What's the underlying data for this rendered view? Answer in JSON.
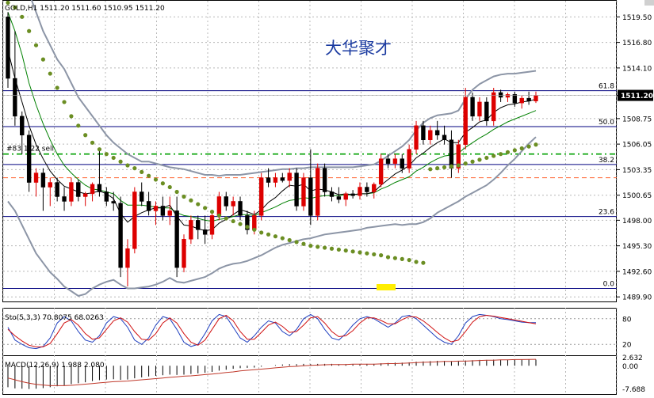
{
  "header": {
    "symbol_line": "GOLD,H1  1511.20  1511.60  1510.95  1511.20",
    "watermark": "大华聚才",
    "trade_label": "#83 1.22 sell"
  },
  "colors": {
    "up": "#dd0000",
    "down": "#000000",
    "bollinger": "#8c95a6",
    "ma_fast": "#000000",
    "ma_slow": "#008000",
    "sar": "#6b8e23",
    "fib": "#00007f",
    "trade_line": "#00a000",
    "stop_line": "#ff6633",
    "stoch_main": "#1f3fbf",
    "stoch_signal": "#d01010",
    "macd_bar": "#000000",
    "macd_signal": "#c0392b",
    "highlight": "#ffee00"
  },
  "chart_data": [
    {
      "type": "candlestick",
      "title": "GOLD,H1",
      "ohlc_readout": "1511.20 1511.60 1510.95 1511.20",
      "ylim": [
        1489.5,
        1521.2
      ],
      "yticks": [
        "1519.50",
        "1516.80",
        "1514.10",
        "1511.20",
        "1508.75",
        "1506.05",
        "1503.35",
        "1500.65",
        "1498.00",
        "1495.30",
        "1492.60",
        "1489.90"
      ],
      "current_price": "1511.20",
      "candles": [
        [
          1519.5,
          1520.0,
          1512.0,
          1513.0
        ],
        [
          1513.0,
          1518.0,
          1508.0,
          1509.0
        ],
        [
          1509.0,
          1509.5,
          1505.0,
          1507.0
        ],
        [
          1507.0,
          1507.5,
          1501.0,
          1502.0
        ],
        [
          1502.0,
          1503.5,
          1500.5,
          1503.0
        ],
        [
          1503.0,
          1503.5,
          1499.0,
          1501.5
        ],
        [
          1501.5,
          1502.5,
          1499.5,
          1502.0
        ],
        [
          1502.0,
          1502.5,
          1500.0,
          1500.5
        ],
        [
          1500.5,
          1501.5,
          1499.0,
          1500.0
        ],
        [
          1500.0,
          1502.5,
          1499.5,
          1502.0
        ],
        [
          1502.0,
          1502.3,
          1500.0,
          1500.5
        ],
        [
          1500.5,
          1501.0,
          1499.5,
          1500.8
        ],
        [
          1500.8,
          1502.0,
          1500.0,
          1501.8
        ],
        [
          1501.8,
          1505.5,
          1500.5,
          1501.0
        ],
        [
          1501.0,
          1501.5,
          1499.5,
          1500.0
        ],
        [
          1500.0,
          1501.0,
          1499.0,
          1499.8
        ],
        [
          1499.8,
          1500.5,
          1492.0,
          1493.0
        ],
        [
          1493.0,
          1496.0,
          1491.0,
          1495.0
        ],
        [
          1495.0,
          1501.5,
          1494.5,
          1501.0
        ],
        [
          1501.0,
          1502.0,
          1499.5,
          1500.0
        ],
        [
          1500.0,
          1501.0,
          1498.5,
          1499.0
        ],
        [
          1499.0,
          1500.0,
          1497.5,
          1499.5
        ],
        [
          1499.5,
          1500.5,
          1498.0,
          1498.5
        ],
        [
          1498.5,
          1500.5,
          1497.5,
          1499.0
        ],
        [
          1499.0,
          1500.5,
          1492.0,
          1493.0
        ],
        [
          1493.0,
          1496.5,
          1492.5,
          1496.0
        ],
        [
          1496.0,
          1498.5,
          1495.5,
          1498.0
        ],
        [
          1498.0,
          1498.5,
          1496.0,
          1497.0
        ],
        [
          1497.0,
          1498.5,
          1495.5,
          1496.5
        ],
        [
          1496.5,
          1499.0,
          1496.0,
          1498.5
        ],
        [
          1498.5,
          1501.0,
          1498.0,
          1500.5
        ],
        [
          1500.5,
          1501.0,
          1499.0,
          1499.5
        ],
        [
          1499.5,
          1500.5,
          1498.5,
          1500.0
        ],
        [
          1500.0,
          1500.5,
          1498.0,
          1498.5
        ],
        [
          1498.5,
          1499.0,
          1496.5,
          1497.0
        ],
        [
          1497.0,
          1499.0,
          1496.5,
          1498.5
        ],
        [
          1498.5,
          1503.0,
          1498.0,
          1502.5
        ],
        [
          1502.5,
          1503.5,
          1501.5,
          1502.0
        ],
        [
          1502.0,
          1503.0,
          1501.5,
          1502.5
        ],
        [
          1502.5,
          1503.0,
          1502.0,
          1502.2
        ],
        [
          1502.2,
          1503.5,
          1501.5,
          1503.0
        ],
        [
          1503.0,
          1503.5,
          1499.0,
          1499.5
        ],
        [
          1499.5,
          1503.0,
          1499.0,
          1502.5
        ],
        [
          1502.5,
          1505.5,
          1497.5,
          1498.5
        ],
        [
          1498.5,
          1504.0,
          1498.0,
          1503.5
        ],
        [
          1503.5,
          1504.0,
          1500.5,
          1501.0
        ],
        [
          1501.0,
          1501.5,
          1500.0,
          1500.5
        ],
        [
          1500.5,
          1501.5,
          1499.8,
          1500.2
        ],
        [
          1500.2,
          1501.0,
          1499.5,
          1500.8
        ],
        [
          1500.8,
          1501.2,
          1500.3,
          1500.6
        ],
        [
          1500.6,
          1502.0,
          1500.2,
          1501.5
        ],
        [
          1501.5,
          1502.0,
          1500.5,
          1501.0
        ],
        [
          1501.0,
          1502.0,
          1500.3,
          1501.8
        ],
        [
          1501.8,
          1505.0,
          1501.5,
          1504.5
        ],
        [
          1504.5,
          1505.0,
          1503.5,
          1504.0
        ],
        [
          1504.0,
          1505.0,
          1503.5,
          1504.5
        ],
        [
          1504.5,
          1505.0,
          1503.0,
          1503.5
        ],
        [
          1503.5,
          1506.0,
          1503.0,
          1505.5
        ],
        [
          1505.5,
          1508.5,
          1505.0,
          1508.0
        ],
        [
          1508.0,
          1508.5,
          1506.0,
          1506.5
        ],
        [
          1506.5,
          1508.0,
          1506.0,
          1507.5
        ],
        [
          1507.5,
          1508.5,
          1506.5,
          1507.0
        ],
        [
          1507.0,
          1508.0,
          1506.0,
          1506.5
        ],
        [
          1506.5,
          1507.5,
          1502.5,
          1503.5
        ],
        [
          1503.5,
          1506.5,
          1503.0,
          1506.0
        ],
        [
          1506.0,
          1512.0,
          1505.5,
          1511.0
        ],
        [
          1511.0,
          1511.5,
          1508.5,
          1509.0
        ],
        [
          1509.0,
          1511.0,
          1508.5,
          1510.5
        ],
        [
          1510.5,
          1511.0,
          1508.0,
          1508.5
        ],
        [
          1508.5,
          1512.0,
          1508.0,
          1511.5
        ],
        [
          1511.5,
          1511.8,
          1510.5,
          1511.0
        ],
        [
          1511.0,
          1511.5,
          1510.5,
          1511.3
        ],
        [
          1511.3,
          1511.6,
          1510.0,
          1510.4
        ],
        [
          1510.4,
          1511.2,
          1509.8,
          1510.9
        ],
        [
          1510.9,
          1511.6,
          1510.2,
          1510.6
        ],
        [
          1510.6,
          1511.6,
          1510.4,
          1511.2
        ]
      ],
      "bb_upper": [
        1526,
        1525,
        1523.5,
        1522,
        1520,
        1518,
        1516.5,
        1515,
        1514,
        1512.5,
        1511,
        1510,
        1509,
        1508,
        1507,
        1506.2,
        1505.6,
        1505,
        1504.6,
        1504.2,
        1504.2,
        1504,
        1503.8,
        1503.6,
        1503.5,
        1503.4,
        1503.2,
        1503,
        1502.8,
        1502.8,
        1502.7,
        1502.8,
        1502.8,
        1502.8,
        1502.9,
        1503,
        1503.1,
        1503.2,
        1503.3,
        1503.4,
        1503.4,
        1503.5,
        1503.5,
        1503.6,
        1503.6,
        1503.6,
        1503.6,
        1503.6,
        1503.6,
        1503.6,
        1503.7,
        1503.8,
        1503.9,
        1504.3,
        1504.8,
        1505.3,
        1505.8,
        1506.5,
        1507.5,
        1508.3,
        1508.8,
        1509.1,
        1509.2,
        1509.3,
        1509.6,
        1510.8,
        1511.8,
        1512.4,
        1512.8,
        1513.2,
        1513.4,
        1513.5,
        1513.5,
        1513.6,
        1513.7,
        1513.8
      ],
      "bb_lower": [
        1500,
        1499,
        1497.5,
        1496,
        1494.5,
        1493.5,
        1492.5,
        1491.8,
        1491,
        1490.5,
        1490,
        1490.2,
        1490.8,
        1491.2,
        1491.5,
        1491.7,
        1491.2,
        1490.8,
        1490.8,
        1490.9,
        1491,
        1491.2,
        1491.5,
        1491.9,
        1491.5,
        1491.4,
        1491.6,
        1491.8,
        1492,
        1492.4,
        1492.9,
        1493.2,
        1493.4,
        1493.5,
        1493.7,
        1494,
        1494.3,
        1494.7,
        1495.1,
        1495.4,
        1495.6,
        1495.8,
        1496,
        1496.1,
        1496.3,
        1496.5,
        1496.6,
        1496.7,
        1496.8,
        1496.9,
        1497,
        1497.2,
        1497.3,
        1497.4,
        1497.5,
        1497.6,
        1497.5,
        1497.6,
        1497.6,
        1497.8,
        1498.2,
        1498.8,
        1499.2,
        1499.6,
        1500,
        1500.5,
        1500.9,
        1501.3,
        1501.7,
        1502.3,
        1503,
        1503.8,
        1504.5,
        1505.3,
        1506.1,
        1506.8
      ],
      "ma_fast": [
        1516,
        1513,
        1510.5,
        1508,
        1506,
        1504.5,
        1503.2,
        1502.3,
        1501.6,
        1501.3,
        1501,
        1500.8,
        1500.9,
        1501.1,
        1500.8,
        1500.3,
        1498.7,
        1497.8,
        1498.4,
        1498.8,
        1499.1,
        1499.3,
        1499.3,
        1499.6,
        1498.4,
        1497.5,
        1497.4,
        1497.1,
        1496.9,
        1497,
        1497.7,
        1498.1,
        1498.6,
        1499.1,
        1498.9,
        1498.6,
        1499.1,
        1499.9,
        1500.4,
        1501.1,
        1501.7,
        1501.6,
        1501.8,
        1501.1,
        1501.3,
        1501.2,
        1501,
        1500.7,
        1500.8,
        1500.7,
        1500.8,
        1500.8,
        1501,
        1501.7,
        1502.3,
        1502.9,
        1503.3,
        1503.8,
        1504.6,
        1505.1,
        1505.7,
        1506.2,
        1506.6,
        1506.2,
        1506.2,
        1507.3,
        1507.8,
        1508.4,
        1508.6,
        1509.4,
        1509.9,
        1510.2,
        1510.3,
        1510.5,
        1510.6,
        1510.8
      ],
      "ma_slow": [
        1520,
        1518,
        1515.5,
        1512.5,
        1510.2,
        1508.2,
        1506.5,
        1505,
        1503.8,
        1503,
        1502.3,
        1501.7,
        1501.3,
        1501.2,
        1501,
        1500.8,
        1500.1,
        1499.6,
        1499.6,
        1499.6,
        1499.5,
        1499.4,
        1499.3,
        1499.3,
        1498.8,
        1498.5,
        1498.4,
        1498.2,
        1498,
        1497.9,
        1498.1,
        1498.2,
        1498.4,
        1498.6,
        1498.6,
        1498.5,
        1498.8,
        1499.1,
        1499.4,
        1499.8,
        1500.1,
        1500.2,
        1500.4,
        1500.3,
        1500.5,
        1500.6,
        1500.6,
        1500.6,
        1500.7,
        1500.7,
        1500.8,
        1500.8,
        1500.9,
        1501.3,
        1501.6,
        1502,
        1502.3,
        1502.6,
        1503.2,
        1503.6,
        1504.1,
        1504.5,
        1504.8,
        1504.9,
        1505.1,
        1505.7,
        1506.2,
        1506.7,
        1507.1,
        1507.6,
        1508,
        1508.4,
        1508.7,
        1509,
        1509.3,
        1509.6
      ],
      "sar": [
        1521,
        1520.5,
        1519.5,
        1518,
        1516.5,
        1515,
        1513.5,
        1512,
        1510.5,
        1509,
        1508,
        1507,
        1506.2,
        1505.5,
        1505,
        1504.6,
        1504.2,
        1503.8,
        1503.5,
        1503.1,
        1502.7,
        1502.3,
        1501.9,
        1501.5,
        1501,
        1500.5,
        1500.1,
        1499.7,
        1499.3,
        1498.9,
        1498.5,
        1498.2,
        1497.9,
        1497.6,
        1497.3,
        1497,
        1496.7,
        1496.5,
        1496.3,
        1496.1,
        1495.9,
        1495.7,
        1495.5,
        1495.3,
        1495.2,
        1495.1,
        1495,
        1494.9,
        1494.8,
        1494.7,
        1494.6,
        1494.5,
        1494.4,
        1494.3,
        1494.1,
        1494,
        1493.9,
        1493.8,
        1493.6,
        1493.5,
        1503.4,
        1503.5,
        1503.6,
        1503.7,
        1503.8,
        1504,
        1504.2,
        1504.4,
        1504.6,
        1504.8,
        1505,
        1505.2,
        1505.4,
        1505.6,
        1505.8,
        1506
      ],
      "fib_levels": [
        {
          "label": "61.8",
          "value": 1511.7
        },
        {
          "label": "50.0",
          "value": 1507.9
        },
        {
          "label": "38.2",
          "value": 1503.9
        },
        {
          "label": "23.6",
          "value": 1498.4
        },
        {
          "label": "0.0",
          "value": 1490.8
        }
      ],
      "trade_line": {
        "label": "#83 1.22 sell",
        "value": 1505.0
      },
      "stop_line": 1502.5
    },
    {
      "type": "line",
      "title": "Sto(5,3,3) 70.8075 68.0263",
      "ylim": [
        0,
        100
      ],
      "levels": [
        20,
        80
      ],
      "yticks": [
        "80",
        "20"
      ],
      "main": [
        60,
        30,
        20,
        12,
        10,
        15,
        35,
        70,
        85,
        75,
        50,
        30,
        25,
        40,
        70,
        85,
        80,
        60,
        30,
        20,
        35,
        65,
        85,
        80,
        55,
        25,
        15,
        20,
        45,
        75,
        90,
        85,
        60,
        35,
        25,
        40,
        60,
        75,
        70,
        50,
        40,
        55,
        80,
        90,
        80,
        55,
        35,
        30,
        45,
        65,
        80,
        85,
        80,
        70,
        60,
        70,
        85,
        88,
        80,
        65,
        50,
        35,
        25,
        20,
        40,
        70,
        85,
        90,
        88,
        85,
        80,
        78,
        75,
        72,
        70.8,
        70.8
      ],
      "signal": [
        55,
        40,
        28,
        18,
        14,
        14,
        22,
        45,
        70,
        78,
        65,
        45,
        32,
        35,
        55,
        75,
        82,
        72,
        50,
        32,
        30,
        45,
        70,
        82,
        70,
        45,
        25,
        18,
        30,
        55,
        80,
        88,
        75,
        50,
        32,
        32,
        48,
        65,
        72,
        62,
        48,
        50,
        65,
        82,
        85,
        70,
        50,
        38,
        40,
        52,
        70,
        82,
        82,
        76,
        68,
        68,
        78,
        85,
        84,
        75,
        62,
        48,
        35,
        26,
        30,
        50,
        72,
        85,
        88,
        86,
        83,
        80,
        77,
        74,
        71,
        68
      ],
      "label_main": "70.8075",
      "label_signal": "68.0263"
    },
    {
      "type": "bar",
      "title": "MACD(12,26,9) 1.988 2.080",
      "ylim": [
        -7.688,
        2.632
      ],
      "yticks": [
        "2.632",
        "0.00",
        "-7.688"
      ],
      "values": [
        -7.0,
        -7.4,
        -7.5,
        -7.6,
        -7.5,
        -7.3,
        -7.0,
        -6.7,
        -6.4,
        -6.0,
        -5.7,
        -5.4,
        -5.0,
        -4.7,
        -4.5,
        -4.4,
        -4.6,
        -4.5,
        -4.1,
        -3.8,
        -3.5,
        -3.3,
        -3.1,
        -2.9,
        -3.0,
        -2.9,
        -2.7,
        -2.5,
        -2.3,
        -2.0,
        -1.6,
        -1.3,
        -1.0,
        -0.8,
        -0.7,
        -0.6,
        -0.3,
        0.0,
        0.2,
        0.4,
        0.5,
        0.5,
        0.6,
        0.5,
        0.6,
        0.6,
        0.6,
        0.5,
        0.5,
        0.5,
        0.5,
        0.6,
        0.6,
        0.8,
        0.9,
        1.0,
        1.0,
        1.1,
        1.3,
        1.4,
        1.5,
        1.6,
        1.6,
        1.5,
        1.5,
        1.7,
        1.8,
        1.9,
        1.9,
        2.0,
        2.0,
        2.0,
        2.0,
        2.0,
        2.0,
        1.988
      ],
      "signal": [
        -4.0,
        -4.6,
        -5.2,
        -5.7,
        -6.1,
        -6.3,
        -6.5,
        -6.5,
        -6.5,
        -6.4,
        -6.2,
        -6.0,
        -5.8,
        -5.6,
        -5.4,
        -5.2,
        -5.1,
        -5.0,
        -4.8,
        -4.6,
        -4.4,
        -4.2,
        -4.0,
        -3.8,
        -3.6,
        -3.4,
        -3.3,
        -3.1,
        -2.9,
        -2.7,
        -2.5,
        -2.2,
        -2.0,
        -1.7,
        -1.5,
        -1.3,
        -1.1,
        -0.9,
        -0.7,
        -0.5,
        -0.3,
        -0.2,
        0.0,
        0.1,
        0.2,
        0.3,
        0.4,
        0.4,
        0.4,
        0.5,
        0.5,
        0.5,
        0.5,
        0.6,
        0.7,
        0.7,
        0.8,
        0.9,
        1.0,
        1.1,
        1.2,
        1.3,
        1.4,
        1.4,
        1.5,
        1.5,
        1.6,
        1.7,
        1.8,
        1.8,
        1.9,
        1.9,
        2.0,
        2.0,
        2.05,
        2.08
      ],
      "label_macd": "1.988",
      "label_signal": "2.080"
    }
  ]
}
